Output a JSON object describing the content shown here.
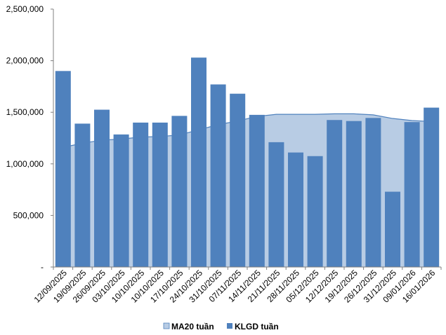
{
  "chart_data": {
    "type": "bar",
    "categories": [
      "12/09/2025",
      "19/09/2025",
      "26/09/2025",
      "03/10/2025",
      "10/10/2025",
      "10/10/2025",
      "17/10/2025",
      "24/10/2025",
      "31/10/2025",
      "07/11/2025",
      "14/11/2025",
      "21/11/2025",
      "28/11/2025",
      "05/12/2025",
      "12/12/2025",
      "19/12/2025",
      "26/12/2025",
      "31/12/2025",
      "09/01/2026",
      "16/01/2026"
    ],
    "series": [
      {
        "name": "MA20 tuần",
        "type": "area",
        "values": [
          1160000,
          1200000,
          1230000,
          1240000,
          1260000,
          1265000,
          1280000,
          1330000,
          1380000,
          1415000,
          1460000,
          1480000,
          1480000,
          1480000,
          1485000,
          1485000,
          1475000,
          1440000,
          1420000,
          1410000
        ],
        "color": "#b8cce4",
        "line_color": "#4f81bd"
      },
      {
        "name": "KLGD tuần",
        "type": "bar",
        "values": [
          1900000,
          1390000,
          1525000,
          1285000,
          1400000,
          1400000,
          1465000,
          2030000,
          1770000,
          1680000,
          1475000,
          1210000,
          1110000,
          1075000,
          1425000,
          1415000,
          1445000,
          730000,
          1405000,
          1545000
        ],
        "color": "#4f81bd"
      }
    ],
    "ylim": [
      0,
      2500000
    ],
    "yticks": [
      0,
      500000,
      1000000,
      1500000,
      2000000,
      2500000
    ],
    "ytick_labels": [
      "-",
      "500,000",
      "1,000,000",
      "1,500,000",
      "2,000,000",
      "2,500,000"
    ],
    "grid": false,
    "legend_position": "bottom"
  }
}
